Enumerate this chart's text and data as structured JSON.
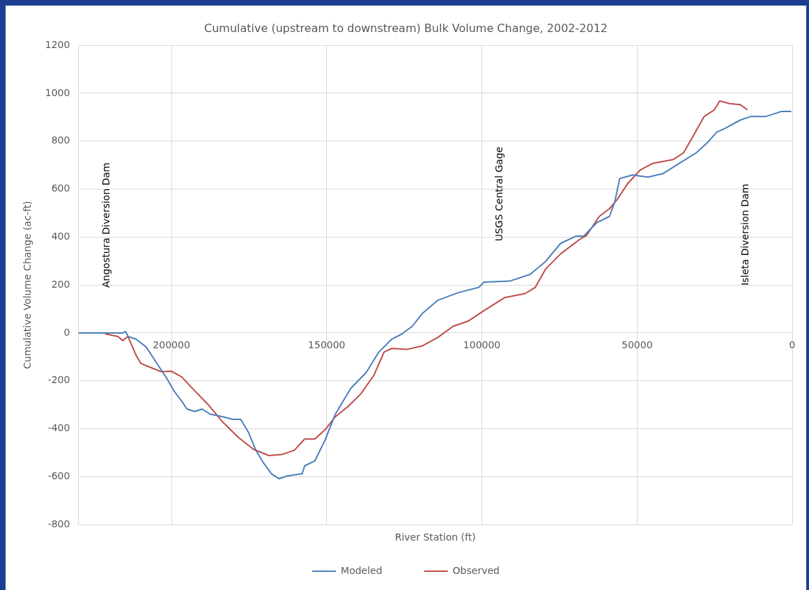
{
  "chart_data": {
    "type": "line",
    "title": "Cumulative (upstream to downstream) Bulk Volume Change, 2002-2012",
    "xlabel": "River Station (ft)",
    "ylabel": "Cumulative Volume Change (ac-ft)",
    "xlim": [
      230000,
      0
    ],
    "xticks": [
      200000,
      150000,
      100000,
      50000,
      0
    ],
    "ylim": [
      -800,
      1200
    ],
    "yticks": [
      -800,
      -600,
      -400,
      -200,
      0,
      200,
      400,
      600,
      800,
      1000,
      1200
    ],
    "grid": true,
    "legend": "bottom",
    "marker": "none",
    "line_style": "solid",
    "annotations": [
      "Angostura Diversion Dam",
      "USGS Central Gage",
      "Isleta Diversion Dam"
    ],
    "series": [
      {
        "name": "Modeled",
        "color": "#4a7ebb",
        "x": [
          230000,
          215700,
          214800,
          214000,
          211500,
          208200,
          204900,
          201600,
          199200,
          196700,
          195000,
          192500,
          190100,
          187600,
          183500,
          180200,
          177700,
          175200,
          172800,
          170300,
          167800,
          165300,
          162900,
          157900,
          157100,
          153800,
          150500,
          147200,
          142200,
          137300,
          133200,
          129000,
          125700,
          122400,
          119100,
          114200,
          107600,
          101000,
          99300,
          91100,
          84500,
          79500,
          74600,
          69600,
          67200,
          63000,
          58900,
          57200,
          55600,
          51500,
          46500,
          41600,
          35000,
          30900,
          27600,
          24300,
          21800,
          16800,
          13500,
          8600,
          3600,
          300
        ],
        "values": [
          0,
          0,
          6,
          -15,
          -26,
          -58,
          -123,
          -188,
          -242,
          -285,
          -318,
          -328,
          -318,
          -339,
          -350,
          -361,
          -361,
          -415,
          -490,
          -544,
          -588,
          -609,
          -598,
          -588,
          -555,
          -534,
          -447,
          -339,
          -231,
          -166,
          -80,
          -26,
          -4,
          28,
          82,
          136,
          168,
          190,
          212,
          216,
          244,
          298,
          374,
          404,
          404,
          460,
          486,
          546,
          644,
          659,
          650,
          665,
          719,
          752,
          791,
          838,
          853,
          888,
          903,
          903,
          924,
          924
        ]
      },
      {
        "name": "Observed",
        "color": "#be4b48",
        "x": [
          221400,
          217300,
          215700,
          214000,
          211500,
          209900,
          206600,
          203300,
          200000,
          196700,
          192500,
          188400,
          183500,
          178500,
          173600,
          168600,
          164500,
          160400,
          157100,
          153800,
          150500,
          147200,
          143100,
          138900,
          134800,
          131500,
          129000,
          124100,
          119100,
          114200,
          109200,
          104300,
          99300,
          92700,
          86100,
          82800,
          79500,
          74600,
          68000,
          66300,
          62200,
          58900,
          56400,
          53100,
          49000,
          44900,
          38300,
          35000,
          31700,
          28400,
          25100,
          23400,
          20100,
          16800,
          14400
        ],
        "values": [
          -4,
          -15,
          -32,
          -15,
          -91,
          -127,
          -145,
          -162,
          -160,
          -184,
          -242,
          -296,
          -372,
          -436,
          -486,
          -512,
          -508,
          -490,
          -443,
          -443,
          -404,
          -350,
          -307,
          -253,
          -177,
          -80,
          -65,
          -69,
          -54,
          -19,
          28,
          50,
          93,
          147,
          164,
          190,
          266,
          330,
          395,
          406,
          486,
          518,
          557,
          622,
          680,
          708,
          724,
          752,
          827,
          903,
          931,
          968,
          957,
          953,
          931
        ]
      }
    ]
  }
}
